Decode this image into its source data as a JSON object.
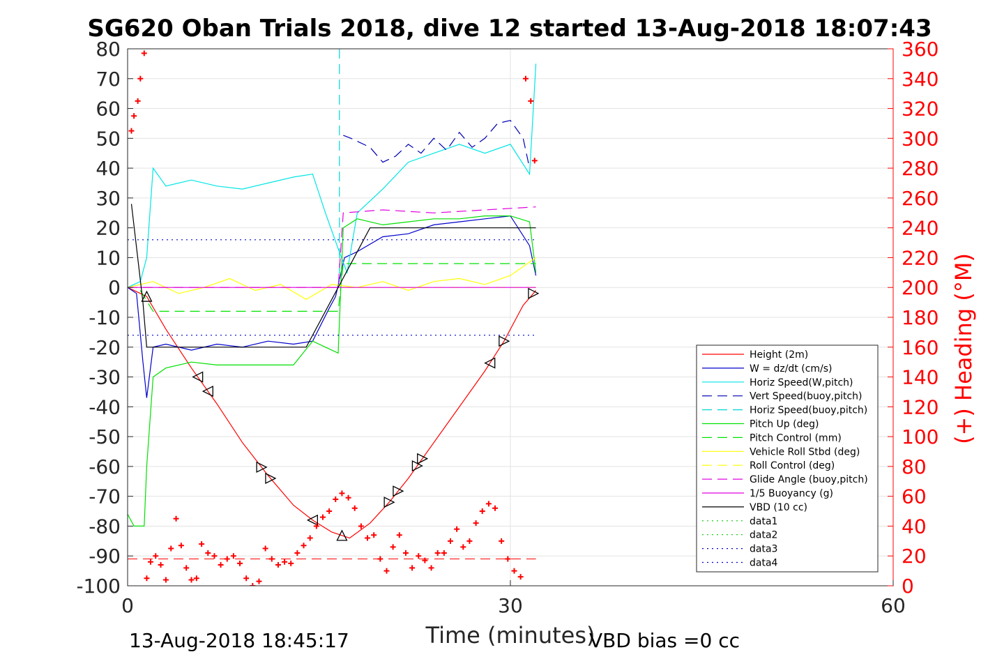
{
  "chart_data": {
    "type": "line",
    "title": "SG620 Oban Trials 2018, dive 12 started 13-Aug-2018 18:07:43",
    "xlabel": "Time (minutes)",
    "ylabel": "",
    "y2label": "(+) Heading (°M)",
    "xlim": [
      0,
      60
    ],
    "ylim": [
      -100,
      80
    ],
    "y2lim": [
      0,
      360
    ],
    "xticks": [
      "0",
      "30",
      "60"
    ],
    "yticks": [
      "80",
      "70",
      "60",
      "50",
      "40",
      "30",
      "20",
      "10",
      "0",
      "-10",
      "-20",
      "-30",
      "-40",
      "-50",
      "-60",
      "-70",
      "-80",
      "-90",
      "-100"
    ],
    "y2ticks": [
      "360",
      "340",
      "320",
      "300",
      "280",
      "260",
      "240",
      "220",
      "200",
      "180",
      "160",
      "140",
      "120",
      "100",
      "80",
      "60",
      "40",
      "20",
      "0"
    ],
    "grid": true,
    "legend_position": "bottom-right",
    "colors": {
      "height": "#ff0000",
      "w": "#0000cc",
      "horiz_w": "#00e5e5",
      "vert_buoy": "#0000b3",
      "horiz_buoy": "#00d5d5",
      "pitch_up": "#00e000",
      "pitch_ctrl": "#00e000",
      "roll": "#ffff00",
      "roll_ctrl": "#ffff00",
      "glide": "#e000e0",
      "buoy": "#e000e0",
      "vbd": "#000000",
      "data_dotted": "#00cc00",
      "data_blue": "#0000cc",
      "heading": "#ff0000"
    },
    "series": [
      {
        "name": "Height (2m)",
        "style": "solid",
        "x": [
          0,
          1.5,
          3,
          5,
          7,
          9,
          11,
          13,
          14.5,
          16,
          17.4,
          19,
          20.5,
          22,
          23.5,
          25,
          26.5,
          28,
          29.5,
          30.5,
          31,
          32
        ],
        "values": [
          0,
          -3,
          -14,
          -27,
          -39,
          -52,
          -63,
          -73,
          -78,
          -82,
          -84,
          -79,
          -72,
          -64,
          -55,
          -46,
          -37,
          -28,
          -18,
          -10,
          -6,
          -1
        ]
      },
      {
        "name": "W = dz/dt (cm/s)",
        "style": "solid",
        "x": [
          0,
          0.7,
          1.2,
          1.5,
          2,
          3,
          5,
          7,
          9,
          11,
          13,
          14.5,
          15.8,
          16.3,
          17,
          18,
          20,
          22,
          24,
          26,
          28,
          30,
          31.5,
          32
        ],
        "values": [
          0,
          -2,
          -25,
          -37,
          -20,
          -19,
          -21,
          -19,
          -20,
          -18,
          -19,
          -18,
          -7,
          -3,
          10,
          12,
          17,
          18,
          21,
          22,
          23,
          24,
          14,
          4
        ]
      },
      {
        "name": "Horiz Speed(W,pitch)",
        "style": "solid",
        "x": [
          0,
          1,
          1.5,
          2,
          3,
          5,
          7,
          9,
          11,
          13,
          14.5,
          15.5,
          16.5,
          17.2,
          18,
          20,
          22,
          24,
          26,
          28,
          30,
          31.5,
          32
        ],
        "values": [
          0,
          2,
          10,
          40,
          34,
          36,
          34,
          33,
          35,
          37,
          38,
          25,
          13,
          5,
          25,
          33,
          42,
          45,
          48,
          45,
          48,
          38,
          75
        ]
      },
      {
        "name": "Vert Speed(buoy,pitch)",
        "style": "dashed",
        "x": [
          16.9,
          17.5,
          19,
          20,
          21,
          22,
          23,
          24,
          25,
          26,
          27,
          28,
          29,
          30,
          31,
          31.5
        ],
        "values": [
          51,
          50,
          47,
          42,
          44,
          48,
          45,
          50,
          46,
          52,
          47,
          50,
          55,
          56,
          50,
          40
        ]
      },
      {
        "name": "Horiz Speed(buoy,pitch)",
        "style": "dashed",
        "x": [
          16.6,
          16.6
        ],
        "values": [
          80,
          2
        ]
      },
      {
        "name": "Pitch Up (deg)",
        "style": "solid",
        "x": [
          0,
          0.5,
          1.3,
          1.5,
          2,
          3,
          5,
          7,
          9,
          11,
          13,
          14.5,
          15.5,
          16.5,
          16.9,
          18,
          20,
          22,
          24,
          26,
          28,
          30,
          31.5,
          32
        ],
        "values": [
          -76,
          -80,
          -80,
          -60,
          -30,
          -27,
          -25,
          -26,
          -26,
          -26,
          -26,
          -18,
          -20,
          -22,
          20,
          23,
          21,
          22,
          23,
          23,
          24,
          24,
          22,
          5
        ]
      },
      {
        "name": "Pitch Control (mm)",
        "style": "dashed",
        "x": [
          1,
          2,
          14.5,
          16.5,
          16.9,
          32
        ],
        "values": [
          -1,
          -8,
          -8,
          -8,
          8,
          8
        ]
      },
      {
        "name": "Vehicle Roll Stbd (deg)",
        "style": "solid",
        "x": [
          0,
          2,
          4,
          6,
          8,
          10,
          12,
          14,
          16,
          18,
          20,
          22,
          24,
          26,
          28,
          30,
          32
        ],
        "values": [
          0,
          2,
          -2,
          0,
          3,
          -1,
          1,
          -4,
          1,
          0,
          2,
          -1,
          2,
          3,
          1,
          4,
          10
        ]
      },
      {
        "name": "Roll Control (deg)",
        "style": "dashed",
        "x": [
          0,
          32
        ],
        "values": [
          0,
          0
        ]
      },
      {
        "name": "Glide Angle (buoy,pitch)",
        "style": "dashed",
        "x": [
          0,
          16.5,
          16.9,
          20,
          24,
          28,
          32
        ],
        "values": [
          0,
          0,
          25,
          26,
          25,
          26,
          27
        ]
      },
      {
        "name": "1/5 Buoyancy (g)",
        "style": "solid",
        "x": [
          0,
          16.9,
          32
        ],
        "values": [
          0,
          0,
          0
        ]
      },
      {
        "name": "VBD (10 cc)",
        "style": "solid",
        "x": [
          0.3,
          1.2,
          1.5,
          14,
          16.5,
          19,
          32
        ],
        "values": [
          28,
          -5,
          -20,
          -20,
          0,
          20,
          20
        ]
      },
      {
        "name": "data1",
        "style": "dotted",
        "x": [],
        "values": []
      },
      {
        "name": "data2",
        "style": "dotted",
        "x": [],
        "values": []
      },
      {
        "name": "data3",
        "style": "dotted",
        "x": [
          0,
          32
        ],
        "values": [
          16,
          16
        ]
      },
      {
        "name": "data4",
        "style": "dotted",
        "x": [
          0,
          32
        ],
        "values": [
          -16,
          -16
        ]
      }
    ],
    "heading": {
      "units": "deg M",
      "x": [
        0.3,
        0.5,
        0.8,
        1.0,
        1.3,
        1.5,
        1.8,
        2.2,
        2.6,
        3.0,
        3.4,
        3.8,
        4.2,
        4.6,
        5.0,
        5.4,
        5.8,
        6.3,
        6.8,
        7.3,
        7.8,
        8.3,
        8.8,
        9.3,
        9.8,
        10.3,
        10.8,
        11.3,
        11.8,
        12.3,
        12.8,
        13.3,
        13.8,
        14.3,
        14.8,
        15.3,
        15.8,
        16.3,
        16.8,
        17.3,
        17.8,
        18.3,
        18.8,
        19.3,
        19.8,
        20.3,
        20.8,
        21.3,
        21.8,
        22.3,
        22.8,
        23.3,
        23.8,
        24.3,
        24.8,
        25.3,
        25.8,
        26.3,
        26.8,
        27.3,
        27.8,
        28.3,
        28.8,
        29.3,
        29.8,
        30.3,
        30.8,
        31.2,
        31.6,
        31.9
      ],
      "values": [
        305,
        315,
        325,
        340,
        357,
        5,
        16,
        20,
        14,
        4,
        25,
        45,
        27,
        12,
        4,
        5,
        28,
        22,
        20,
        14,
        18,
        20,
        15,
        5,
        0,
        3,
        25,
        18,
        14,
        16,
        15,
        22,
        27,
        32,
        40,
        46,
        50,
        58,
        62,
        59,
        52,
        40,
        32,
        34,
        18,
        10,
        26,
        34,
        22,
        12,
        20,
        17,
        12,
        22,
        22,
        30,
        38,
        26,
        30,
        42,
        50,
        55,
        52,
        30,
        18,
        10,
        6,
        340,
        325,
        285
      ]
    },
    "xlim_note": "",
    "footer_left": "13-Aug-2018 18:45:17",
    "footer_right": "VBD bias =0 cc"
  }
}
